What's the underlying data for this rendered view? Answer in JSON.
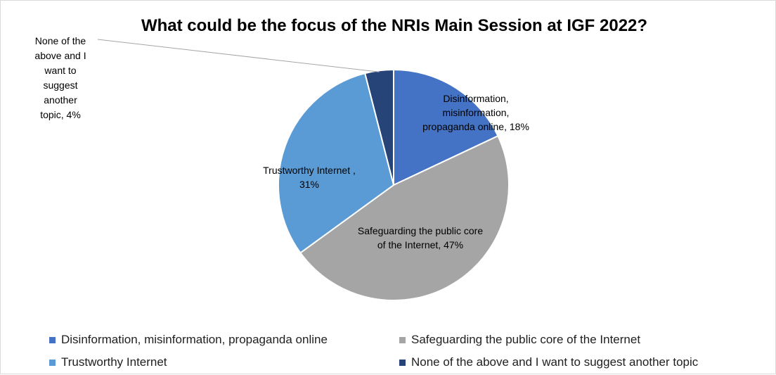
{
  "chart_data": {
    "type": "pie",
    "title": "What could be the focus of the NRIs Main Session at IGF 2022?",
    "series": [
      {
        "name": "",
        "values": [
          18,
          47,
          31,
          4
        ]
      }
    ],
    "categories": [
      "Disinformation, misinformation, propaganda online",
      "Safeguarding the public core of the Internet",
      "Trustworthy Internet",
      "None of the above and I want to suggest another topic"
    ],
    "colors": [
      "#4472c4",
      "#a5a5a5",
      "#5b9bd5",
      "#264478"
    ],
    "data_labels": [
      [
        "Disinformation,",
        "misinformation,",
        "propaganda online, 18%"
      ],
      [
        "Safeguarding the public core",
        "of the Internet, 47%"
      ],
      [
        "Trustworthy Internet ,",
        "31%"
      ],
      [
        "None of the",
        "above and I",
        "want to",
        "suggest",
        "another",
        "topic, 4%"
      ]
    ],
    "legend_position": "bottom",
    "start_angle_deg": 0,
    "direction": "clockwise"
  }
}
